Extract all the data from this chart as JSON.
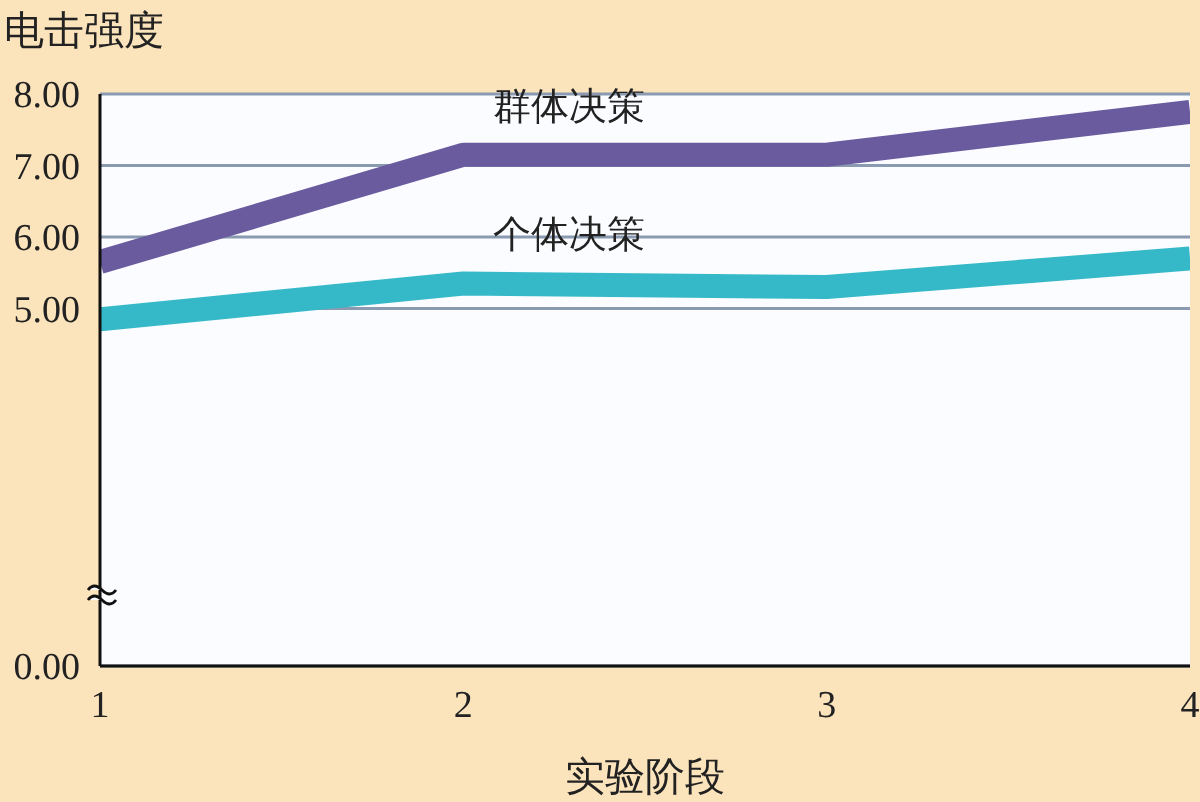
{
  "chart_data": {
    "type": "line",
    "title": "电击强度",
    "xlabel": "实验阶段",
    "x": [
      1,
      2,
      3,
      4
    ],
    "xlim": [
      1,
      4
    ],
    "xticks": [
      1,
      2,
      3,
      4
    ],
    "ylim": [
      0,
      8
    ],
    "yticks": [
      {
        "value": 0,
        "label": "0.00"
      },
      {
        "value": 5,
        "label": "5.00"
      },
      {
        "value": 6,
        "label": "6.00"
      },
      {
        "value": 7,
        "label": "7.00"
      },
      {
        "value": 8,
        "label": "8.00"
      }
    ],
    "series": [
      {
        "name": "群体决策",
        "color": "#6a5b9f",
        "values": [
          5.65,
          7.15,
          7.15,
          7.75
        ]
      },
      {
        "name": "个体决策",
        "color": "#35b9c9",
        "values": [
          4.85,
          5.35,
          5.3,
          5.7
        ]
      }
    ],
    "grid": "y",
    "legend": false,
    "marker": "none",
    "line_style": "solid"
  }
}
